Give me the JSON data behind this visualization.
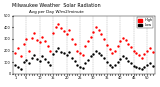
{
  "title": "Milwaukee Weather  Solar Radiation",
  "subtitle": "Avg per Day W/m2/minute",
  "bg_color": "#ffffff",
  "plot_bg": "#ffffff",
  "axis_color": "#000000",
  "red_color": "#ff0000",
  "black_color": "#000000",
  "legend_label_red": "High",
  "legend_label_black": "Low",
  "ylim": [
    0,
    500
  ],
  "yticks": [
    0,
    100,
    200,
    300,
    400,
    500
  ],
  "num_points": 52,
  "red_data": [
    180,
    220,
    150,
    260,
    300,
    200,
    310,
    350,
    290,
    270,
    320,
    280,
    240,
    200,
    350,
    400,
    430,
    390,
    370,
    340,
    380,
    300,
    260,
    200,
    180,
    160,
    240,
    280,
    320,
    360,
    400,
    380,
    340,
    300,
    250,
    210,
    180,
    200,
    240,
    280,
    310,
    290,
    260,
    230,
    200,
    180,
    160,
    140,
    170,
    200,
    220,
    190
  ],
  "black_data": [
    80,
    60,
    40,
    100,
    120,
    90,
    140,
    160,
    130,
    110,
    150,
    130,
    100,
    80,
    170,
    200,
    220,
    190,
    180,
    160,
    190,
    140,
    110,
    80,
    60,
    50,
    90,
    120,
    150,
    170,
    200,
    180,
    160,
    140,
    100,
    80,
    60,
    80,
    100,
    130,
    150,
    140,
    110,
    90,
    70,
    60,
    50,
    40,
    60,
    80,
    90,
    70
  ],
  "x_labels": [
    "1",
    "",
    "",
    "",
    "5",
    "",
    "",
    "",
    "",
    "10",
    "",
    "",
    "",
    "",
    "15",
    "",
    "",
    "",
    "",
    "20",
    "",
    "",
    "",
    "",
    "25",
    "",
    "",
    "",
    "",
    "30",
    "",
    "",
    "",
    "",
    "35",
    "",
    "",
    "",
    "",
    "40",
    "",
    "",
    "",
    "",
    "45",
    "",
    "",
    "",
    "",
    "50",
    "",
    ""
  ],
  "vline_positions": [
    4,
    9,
    14,
    19,
    24,
    29,
    34,
    39,
    44,
    49
  ],
  "dot_size": 3,
  "legend_box_color": "#ff0000"
}
